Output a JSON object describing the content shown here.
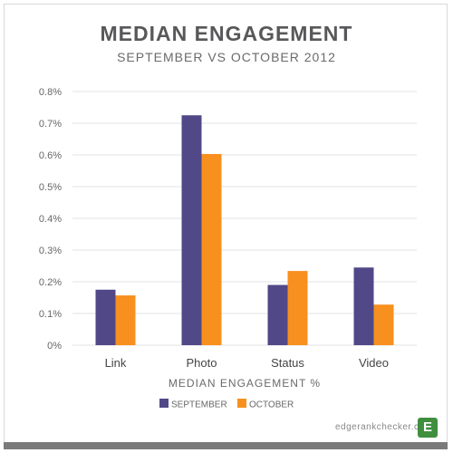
{
  "header": {
    "title": "MEDIAN ENGAGEMENT",
    "subtitle": "SEPTEMBER VS OCTOBER 2012"
  },
  "footer": {
    "site": "edgerankchecker.com",
    "logo_letter": "E"
  },
  "colors": {
    "september": "#514888",
    "october": "#f7901e",
    "grid": "#e3e3e3",
    "axis_text": "#666666"
  },
  "chart_data": {
    "type": "bar",
    "title": "MEDIAN ENGAGEMENT",
    "subtitle": "SEPTEMBER VS OCTOBER 2012",
    "xlabel": "MEDIAN ENGAGEMENT %",
    "ylabel": "",
    "categories": [
      "Link",
      "Photo",
      "Status",
      "Video"
    ],
    "series": [
      {
        "name": "SEPTEMBER",
        "values": [
          0.175,
          0.725,
          0.19,
          0.245
        ]
      },
      {
        "name": "OCTOBER",
        "values": [
          0.157,
          0.603,
          0.234,
          0.128
        ]
      }
    ],
    "ylim": [
      0,
      0.8
    ],
    "yticks": [
      0,
      0.1,
      0.2,
      0.3,
      0.4,
      0.5,
      0.6,
      0.7,
      0.8
    ],
    "ytick_labels": [
      "0%",
      "0.1%",
      "0.2%",
      "0.3%",
      "0.4%",
      "0.5%",
      "0.6%",
      "0.7%",
      "0.8%"
    ],
    "grid": true,
    "legend_position": "bottom-center"
  }
}
